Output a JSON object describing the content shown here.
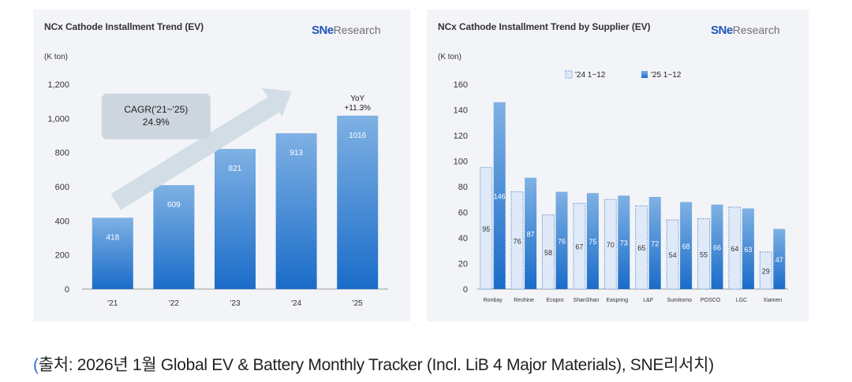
{
  "source": {
    "paren": "(",
    "text": "출처: 2026년 1월 Global EV & Battery Monthly Tracker (Incl. LiB 4 Major Materials), SNE리서치)"
  },
  "logo": {
    "sne": "SNe",
    "research": "Research"
  },
  "colors": {
    "bar_top": "#7fb1e4",
    "bar_bottom": "#1a6cc9",
    "prev_year_fill": "#dfe9f7",
    "prev_year_border": "#5e8fd0",
    "cagr_box": "#cdd6df",
    "arrow": "#d2dde6",
    "panel_bg": "#f2f4f7",
    "source_paren": "#2a6fd6"
  },
  "chart_data": [
    {
      "type": "bar",
      "title": "NCx Cathode Installment Trend (EV)",
      "ylabel": "(K ton)",
      "xlabel": "",
      "categories": [
        "'21",
        "'22",
        "'23",
        "'24",
        "'25"
      ],
      "values": [
        418,
        609,
        821,
        913,
        1016
      ],
      "ylim": [
        0,
        1200
      ],
      "yticks": [
        "0",
        "200",
        "400",
        "600",
        "800",
        "1,000",
        "1,200"
      ],
      "grid": false,
      "annotations": {
        "cagr_label": "CAGR('21~'25)",
        "cagr_value": "24.9%",
        "yoy_label": "YoY",
        "yoy_value": "+11.3%"
      }
    },
    {
      "type": "bar",
      "title": "NCx Cathode Installment Trend by Supplier (EV)",
      "ylabel": "(K ton)",
      "xlabel": "",
      "categories": [
        "Ronbay",
        "Reshine",
        "Ecopro",
        "ShanShan",
        "Easpring",
        "L&F",
        "Sumitomo",
        "POSCO",
        "LGC",
        "Xiamen"
      ],
      "series": [
        {
          "name": "'24 1~12",
          "values": [
            95,
            76,
            58,
            67,
            70,
            65,
            54,
            55,
            64,
            29
          ]
        },
        {
          "name": "'25 1~12",
          "values": [
            146,
            87,
            76,
            75,
            73,
            72,
            68,
            66,
            63,
            47
          ]
        }
      ],
      "ylim": [
        0,
        160
      ],
      "yticks": [
        "0",
        "20",
        "40",
        "60",
        "80",
        "100",
        "120",
        "140",
        "160"
      ],
      "legend": "top",
      "grid": false
    }
  ]
}
